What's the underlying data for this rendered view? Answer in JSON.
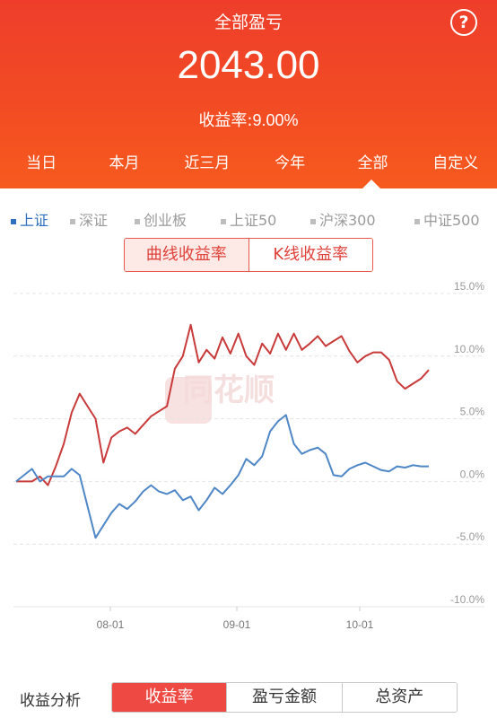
{
  "header": {
    "title": "全部盈亏",
    "help_icon": "?",
    "amount": "2043.00",
    "rate_label": "收益率:",
    "rate_value": "9.00%",
    "tabs": [
      {
        "label": "当日",
        "active": false
      },
      {
        "label": "本月",
        "active": false
      },
      {
        "label": "近三月",
        "active": false
      },
      {
        "label": "今年",
        "active": false
      },
      {
        "label": "全部",
        "active": true
      },
      {
        "label": "自定义",
        "active": false
      }
    ]
  },
  "indices": [
    {
      "label": "上证",
      "active": true
    },
    {
      "label": "深证",
      "active": false
    },
    {
      "label": "创业板",
      "active": false
    },
    {
      "label": "上证50",
      "active": false
    },
    {
      "label": "沪深300",
      "active": false
    },
    {
      "label": "中证500",
      "active": false
    }
  ],
  "chart_mode": {
    "options": [
      "曲线收益率",
      "K线收益率"
    ],
    "active": 0
  },
  "watermark": "同花顺",
  "chart_data": {
    "type": "line",
    "x_ticks": [
      "08-01",
      "09-01",
      "10-01"
    ],
    "y_ticks": [
      "15.0%",
      "10.0%",
      "5.0%",
      "0.0%",
      "-5.0%",
      "-10.0%"
    ],
    "ylim": [
      -10,
      15
    ],
    "colors": {
      "portfolio": "#c93a3a",
      "index": "#4f86c6"
    },
    "series": [
      {
        "key": "portfolio",
        "values": [
          0,
          0,
          0,
          0.4,
          -0.3,
          1.2,
          3,
          5.5,
          7,
          6,
          5,
          1.5,
          3.5,
          4,
          4.3,
          3.8,
          4.5,
          5.2,
          5.6,
          6,
          9,
          10,
          12.5,
          9.5,
          10.5,
          9.8,
          11.5,
          10.2,
          11.8,
          10,
          9.3,
          11,
          10.2,
          11.8,
          10.5,
          11.8,
          10.5,
          11,
          11.6,
          10.8,
          11.2,
          11.6,
          10.4,
          9.5,
          10,
          10.3,
          10.3,
          9.7,
          8,
          7.4,
          7.8,
          8.2,
          8.9
        ]
      },
      {
        "key": "index",
        "values": [
          0,
          0.5,
          1,
          0,
          0.4,
          0.4,
          0.4,
          1,
          0.5,
          -2,
          -4.5,
          -3.5,
          -2.5,
          -1.8,
          -2.2,
          -1.6,
          -0.8,
          -0.3,
          -0.8,
          -1,
          -0.7,
          -1.5,
          -1.2,
          -2.3,
          -1.5,
          -0.5,
          -1,
          -0.3,
          0.5,
          1.8,
          1.3,
          2,
          4,
          4.8,
          5.3,
          3,
          2.2,
          2.5,
          2.7,
          2.2,
          0.5,
          0.4,
          1,
          1.3,
          1.5,
          1.2,
          0.9,
          0.8,
          1.2,
          1.1,
          1.3,
          1.2,
          1.2
        ]
      }
    ]
  },
  "bottom": {
    "label": "收益分析",
    "options": [
      {
        "label": "收益率",
        "active": true
      },
      {
        "label": "盈亏金额",
        "active": false
      },
      {
        "label": "总资产",
        "active": false
      }
    ]
  }
}
